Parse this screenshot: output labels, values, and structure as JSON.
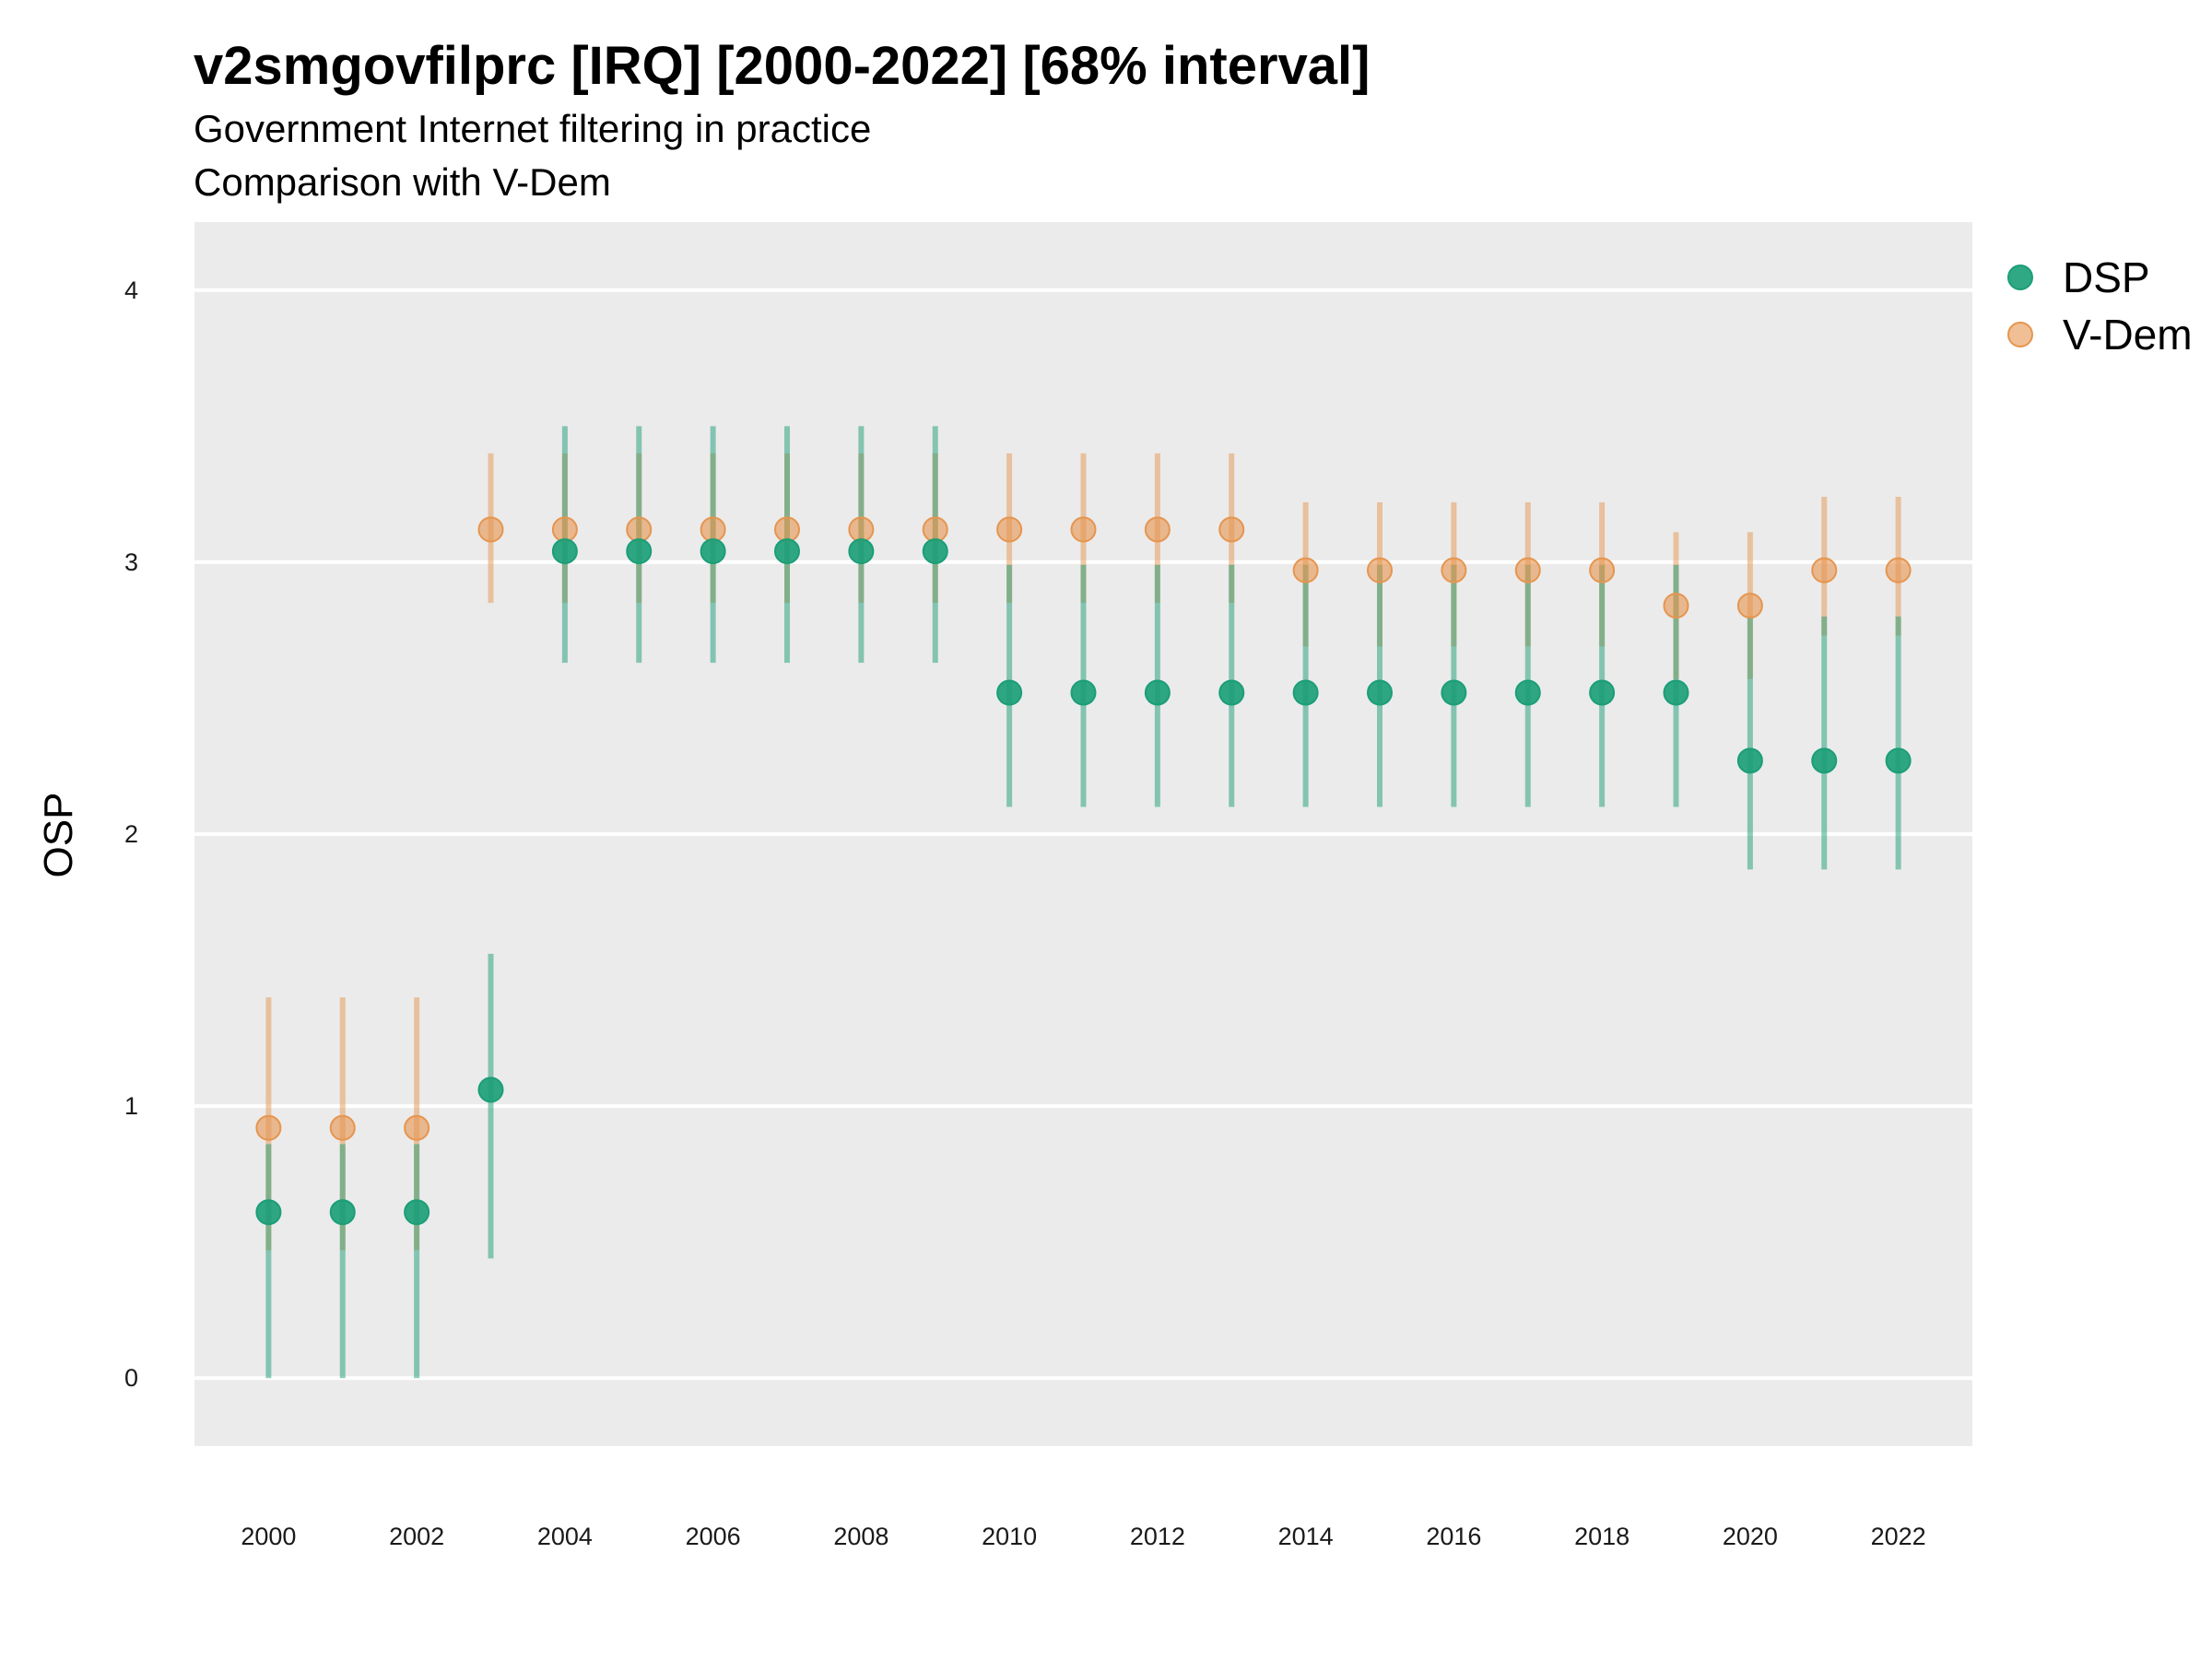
{
  "chart_data": {
    "type": "scatter",
    "title": "v2smgovfilprc [IRQ] [2000-2022] [68% interval]",
    "subtitle": [
      "Government Internet filtering in practice",
      "Comparison with V-Dem"
    ],
    "xlabel": "",
    "ylabel": "OSP",
    "xlim": [
      1999,
      2023
    ],
    "ylim": [
      -0.25,
      4.25
    ],
    "x_ticks": [
      "2000",
      "2002",
      "2004",
      "2006",
      "2008",
      "2010",
      "2012",
      "2014",
      "2016",
      "2018",
      "2020",
      "2022"
    ],
    "y_ticks": [
      "0",
      "1",
      "2",
      "3",
      "4"
    ],
    "grid": true,
    "legend_position": "right",
    "series": [
      {
        "name": "DSP",
        "color": "#1b9e77",
        "points": [
          {
            "x": 2000,
            "y": 0.61,
            "lo": 0.0,
            "hi": 0.86
          },
          {
            "x": 2001,
            "y": 0.61,
            "lo": 0.0,
            "hi": 0.86
          },
          {
            "x": 2002,
            "y": 0.61,
            "lo": 0.0,
            "hi": 0.86
          },
          {
            "x": 2003,
            "y": 1.06,
            "lo": 0.44,
            "hi": 1.56
          },
          {
            "x": 2004,
            "y": 3.04,
            "lo": 2.63,
            "hi": 3.5
          },
          {
            "x": 2005,
            "y": 3.04,
            "lo": 2.63,
            "hi": 3.5
          },
          {
            "x": 2006,
            "y": 3.04,
            "lo": 2.63,
            "hi": 3.5
          },
          {
            "x": 2007,
            "y": 3.04,
            "lo": 2.63,
            "hi": 3.5
          },
          {
            "x": 2008,
            "y": 3.04,
            "lo": 2.63,
            "hi": 3.5
          },
          {
            "x": 2009,
            "y": 3.04,
            "lo": 2.63,
            "hi": 3.5
          },
          {
            "x": 2010,
            "y": 2.52,
            "lo": 2.1,
            "hi": 2.99
          },
          {
            "x": 2011,
            "y": 2.52,
            "lo": 2.1,
            "hi": 2.99
          },
          {
            "x": 2012,
            "y": 2.52,
            "lo": 2.1,
            "hi": 2.99
          },
          {
            "x": 2013,
            "y": 2.52,
            "lo": 2.1,
            "hi": 2.99
          },
          {
            "x": 2014,
            "y": 2.52,
            "lo": 2.1,
            "hi": 2.99
          },
          {
            "x": 2015,
            "y": 2.52,
            "lo": 2.1,
            "hi": 2.99
          },
          {
            "x": 2016,
            "y": 2.52,
            "lo": 2.1,
            "hi": 2.99
          },
          {
            "x": 2017,
            "y": 2.52,
            "lo": 2.1,
            "hi": 2.99
          },
          {
            "x": 2018,
            "y": 2.52,
            "lo": 2.1,
            "hi": 2.99
          },
          {
            "x": 2019,
            "y": 2.52,
            "lo": 2.1,
            "hi": 2.99
          },
          {
            "x": 2020,
            "y": 2.27,
            "lo": 1.87,
            "hi": 2.8
          },
          {
            "x": 2021,
            "y": 2.27,
            "lo": 1.87,
            "hi": 2.8
          },
          {
            "x": 2022,
            "y": 2.27,
            "lo": 1.87,
            "hi": 2.8
          }
        ]
      },
      {
        "name": "V-Dem",
        "color": "#e6954f",
        "points": [
          {
            "x": 2000,
            "y": 0.92,
            "lo": 0.47,
            "hi": 1.4
          },
          {
            "x": 2001,
            "y": 0.92,
            "lo": 0.47,
            "hi": 1.4
          },
          {
            "x": 2002,
            "y": 0.92,
            "lo": 0.47,
            "hi": 1.4
          },
          {
            "x": 2003,
            "y": 3.12,
            "lo": 2.85,
            "hi": 3.4
          },
          {
            "x": 2004,
            "y": 3.12,
            "lo": 2.85,
            "hi": 3.4
          },
          {
            "x": 2005,
            "y": 3.12,
            "lo": 2.85,
            "hi": 3.4
          },
          {
            "x": 2006,
            "y": 3.12,
            "lo": 2.85,
            "hi": 3.4
          },
          {
            "x": 2007,
            "y": 3.12,
            "lo": 2.85,
            "hi": 3.4
          },
          {
            "x": 2008,
            "y": 3.12,
            "lo": 2.85,
            "hi": 3.4
          },
          {
            "x": 2009,
            "y": 3.12,
            "lo": 2.85,
            "hi": 3.4
          },
          {
            "x": 2010,
            "y": 3.12,
            "lo": 2.85,
            "hi": 3.4
          },
          {
            "x": 2011,
            "y": 3.12,
            "lo": 2.85,
            "hi": 3.4
          },
          {
            "x": 2012,
            "y": 3.12,
            "lo": 2.85,
            "hi": 3.4
          },
          {
            "x": 2013,
            "y": 3.12,
            "lo": 2.85,
            "hi": 3.4
          },
          {
            "x": 2014,
            "y": 2.97,
            "lo": 2.69,
            "hi": 3.22
          },
          {
            "x": 2015,
            "y": 2.97,
            "lo": 2.69,
            "hi": 3.22
          },
          {
            "x": 2016,
            "y": 2.97,
            "lo": 2.69,
            "hi": 3.22
          },
          {
            "x": 2017,
            "y": 2.97,
            "lo": 2.69,
            "hi": 3.22
          },
          {
            "x": 2018,
            "y": 2.97,
            "lo": 2.69,
            "hi": 3.22
          },
          {
            "x": 2019,
            "y": 2.84,
            "lo": 2.57,
            "hi": 3.11
          },
          {
            "x": 2020,
            "y": 2.84,
            "lo": 2.57,
            "hi": 3.11
          },
          {
            "x": 2021,
            "y": 2.97,
            "lo": 2.73,
            "hi": 3.24
          },
          {
            "x": 2022,
            "y": 2.97,
            "lo": 2.73,
            "hi": 3.24
          }
        ]
      }
    ]
  }
}
